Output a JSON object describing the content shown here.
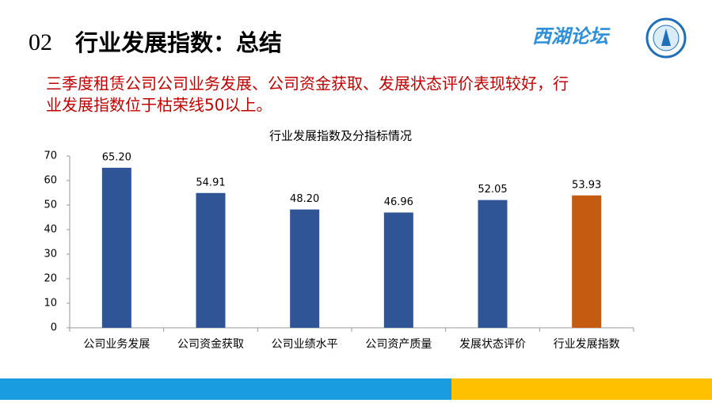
{
  "header": {
    "number": "02",
    "title": "行业发展指数：总结",
    "logo_text": "西湖论坛"
  },
  "body_text": [
    "三季度租赁公司公司业务发展、公司资金获取、发展状态评价表现较好，行",
    "业发展指数位于枯荣线50以上。"
  ],
  "chart_data": {
    "type": "bar",
    "title": "行业发展指数及分指标情况",
    "categories": [
      "公司业务发展",
      "公司资金获取",
      "公司业绩水平",
      "公司资产质量",
      "发展状态评价",
      "行业发展指数"
    ],
    "values": [
      65.2,
      54.91,
      48.2,
      46.96,
      52.05,
      53.93
    ],
    "value_labels": [
      "65.20",
      "54.91",
      "48.20",
      "46.96",
      "52.05",
      "53.93"
    ],
    "colors": [
      "#2f5597",
      "#2f5597",
      "#2f5597",
      "#2f5597",
      "#2f5597",
      "#c55a11"
    ],
    "ylim": [
      0,
      70
    ],
    "yticks": [
      0,
      10,
      20,
      30,
      40,
      50,
      60,
      70
    ],
    "grid": false
  }
}
